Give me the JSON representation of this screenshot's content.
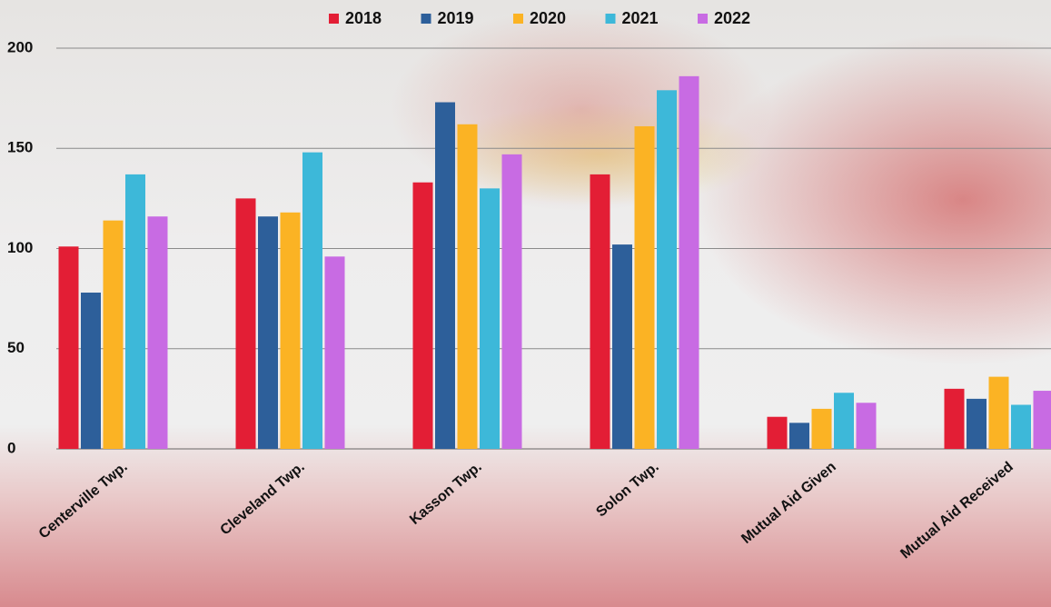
{
  "chart_data": {
    "type": "bar",
    "categories": [
      "Centerville Twp.",
      "Cleveland Twp.",
      "Kasson Twp.",
      "Solon Twp.",
      "Mutual Aid Given",
      "Mutual Aid Received"
    ],
    "series": [
      {
        "name": "2018",
        "color": "#e31e35",
        "values": [
          101,
          125,
          133,
          137,
          16,
          30
        ]
      },
      {
        "name": "2019",
        "color": "#2d5f9a",
        "values": [
          78,
          116,
          173,
          102,
          13,
          25
        ]
      },
      {
        "name": "2020",
        "color": "#fbb324",
        "values": [
          114,
          118,
          162,
          161,
          20,
          36
        ]
      },
      {
        "name": "2021",
        "color": "#3db8d9",
        "values": [
          137,
          148,
          130,
          179,
          28,
          22
        ]
      },
      {
        "name": "2022",
        "color": "#c86be3",
        "values": [
          116,
          96,
          147,
          186,
          23,
          29
        ]
      }
    ],
    "ylim": [
      0,
      200
    ],
    "yticks": [
      0,
      50,
      100,
      150,
      200
    ],
    "grid": true,
    "legend": "top"
  }
}
